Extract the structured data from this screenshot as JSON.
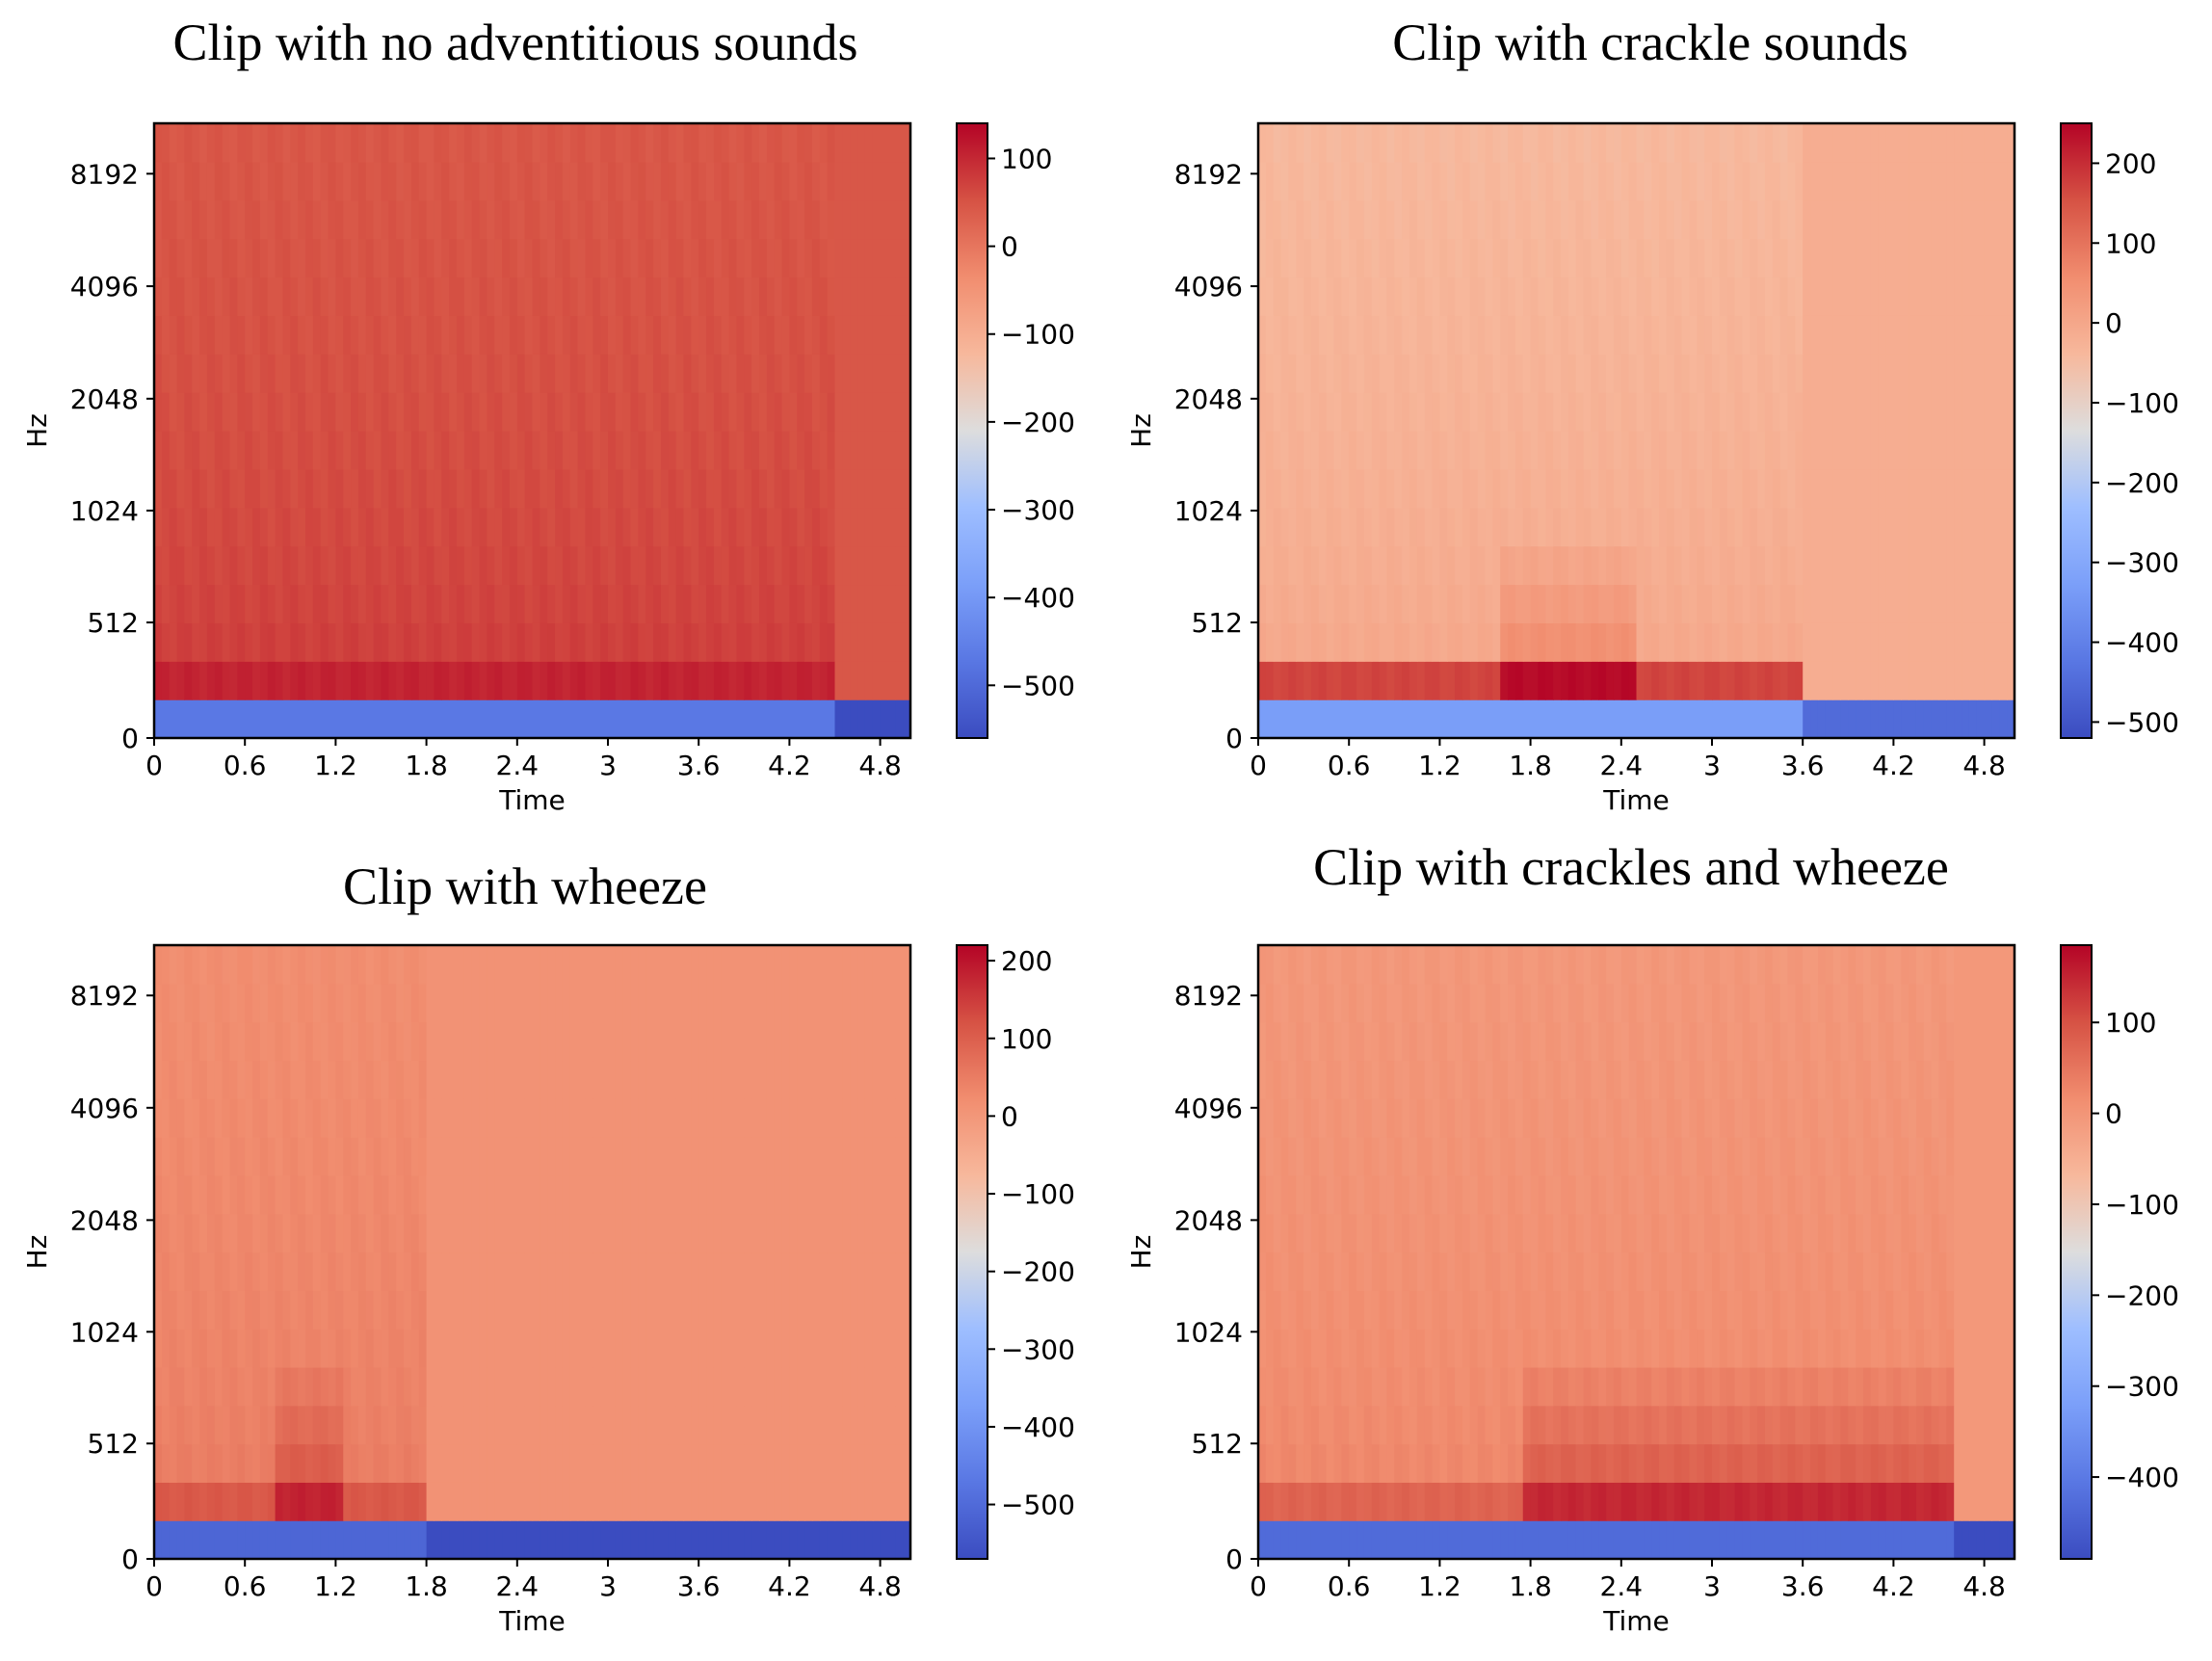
{
  "chart_data": [
    {
      "type": "heatmap",
      "title": "Clip with no adventitious sounds",
      "xlabel": "Time",
      "ylabel": "Hz",
      "xticks": [
        "0",
        "0.6",
        "1.2",
        "1.8",
        "2.4",
        "3",
        "3.6",
        "4.2",
        "4.8"
      ],
      "xlim": [
        0,
        5.0
      ],
      "yticks": [
        "0",
        "512",
        "1024",
        "2048",
        "4096",
        "8192"
      ],
      "colorbar": {
        "ticks": [
          100,
          0,
          -100,
          -200,
          -300,
          -400,
          -500
        ],
        "tick_labels": [
          "100",
          "0",
          "−100",
          "−200",
          "−300",
          "−400",
          "−500"
        ],
        "vmin": -560,
        "vmax": 140
      },
      "signal_end_time": 4.5,
      "levels": {
        "top": 45,
        "mid": 60,
        "low": 85,
        "bottom_band": 105,
        "silent": 45,
        "lowest_bin": -470
      }
    },
    {
      "type": "heatmap",
      "title": "Clip with crackle sounds",
      "xlabel": "Time",
      "ylabel": "Hz",
      "xticks": [
        "0",
        "0.6",
        "1.2",
        "1.8",
        "2.4",
        "3",
        "3.6",
        "4.2",
        "4.8"
      ],
      "xlim": [
        0,
        5.0
      ],
      "yticks": [
        "0",
        "512",
        "1024",
        "2048",
        "4096",
        "8192"
      ],
      "colorbar": {
        "ticks": [
          200,
          100,
          0,
          -100,
          -200,
          -300,
          -400,
          -500
        ],
        "tick_labels": [
          "200",
          "100",
          "0",
          "−100",
          "−200",
          "−300",
          "−400",
          "−500"
        ],
        "vmin": -520,
        "vmax": 250
      },
      "signal_end_time": 3.6,
      "peak_time_range": [
        1.6,
        2.5
      ],
      "levels": {
        "top": -40,
        "mid": -55,
        "low": 10,
        "bottom_band": 170,
        "silent": -15,
        "lowest_bin": -330
      }
    },
    {
      "type": "heatmap",
      "title": "Clip with wheeze",
      "xlabel": "Time",
      "ylabel": "Hz",
      "xticks": [
        "0",
        "0.6",
        "1.2",
        "1.8",
        "2.4",
        "3",
        "3.6",
        "4.2",
        "4.8"
      ],
      "xlim": [
        0,
        5.0
      ],
      "yticks": [
        "0",
        "512",
        "1024",
        "2048",
        "4096",
        "8192"
      ],
      "colorbar": {
        "ticks": [
          200,
          100,
          0,
          -100,
          -200,
          -300,
          -400,
          -500
        ],
        "tick_labels": [
          "200",
          "100",
          "0",
          "−100",
          "−200",
          "−300",
          "−400",
          "−500"
        ],
        "vmin": -570,
        "vmax": 220
      },
      "signal_end_time": 1.82,
      "peak_time_range": [
        0.8,
        1.25
      ],
      "levels": {
        "top": 20,
        "mid": 30,
        "low": 60,
        "bottom_band": 110,
        "silent": 10,
        "lowest_bin": -510
      }
    },
    {
      "type": "heatmap",
      "title": "Clip with crackles and wheeze",
      "xlabel": "Time",
      "ylabel": "Hz",
      "xticks": [
        "0",
        "0.6",
        "1.2",
        "1.8",
        "2.4",
        "3",
        "3.6",
        "4.2",
        "4.8"
      ],
      "xlim": [
        0,
        5.0
      ],
      "yticks": [
        "0",
        "512",
        "1024",
        "2048",
        "4096",
        "8192"
      ],
      "colorbar": {
        "ticks": [
          100,
          0,
          -100,
          -200,
          -300,
          -400
        ],
        "tick_labels": [
          "100",
          "0",
          "−100",
          "−200",
          "−300",
          "−400"
        ],
        "vmin": -490,
        "vmax": 185
      },
      "signal_end_time": 4.6,
      "peak_time_range": [
        1.75,
        4.6
      ],
      "levels": {
        "top": -5,
        "mid": 5,
        "low": 35,
        "bottom_band": 75,
        "silent": -5,
        "lowest_bin": -430
      }
    }
  ]
}
